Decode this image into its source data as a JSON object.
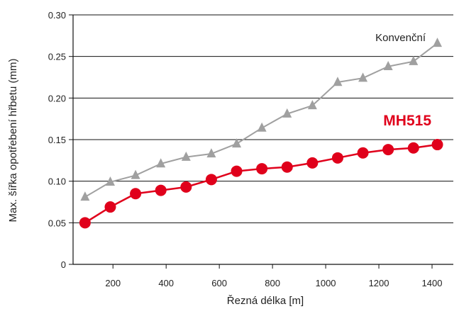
{
  "chart_data": {
    "type": "line",
    "xlabel": "Řezná délka [m]",
    "ylabel": "Max. šířka opotřebení hřbetu (mm)",
    "xlim": [
      50,
      1480
    ],
    "ylim": [
      0,
      0.3
    ],
    "x_ticks": [
      200,
      400,
      600,
      800,
      1000,
      1200,
      1400
    ],
    "x_tick_labels": [
      "200",
      "400",
      "600",
      "800",
      "1000",
      "1200",
      "1400"
    ],
    "y_ticks": [
      0,
      0.05,
      0.1,
      0.15,
      0.2,
      0.25,
      0.3
    ],
    "y_tick_labels": [
      "0",
      "0.05",
      "0.10",
      "0.15",
      "0.20",
      "0.25",
      "0.30"
    ],
    "grid": "horizontal",
    "series": [
      {
        "name": "Konvenční",
        "color": "#a0a0a0",
        "marker": "triangle",
        "x": [
          95,
          190,
          285,
          380,
          475,
          570,
          665,
          760,
          855,
          950,
          1045,
          1140,
          1235,
          1330,
          1420
        ],
        "y": [
          0.081,
          0.099,
          0.107,
          0.121,
          0.129,
          0.133,
          0.145,
          0.164,
          0.181,
          0.191,
          0.219,
          0.224,
          0.238,
          0.244,
          0.266
        ]
      },
      {
        "name": "MH515",
        "color": "#e0001b",
        "marker": "circle",
        "x": [
          95,
          190,
          285,
          380,
          475,
          570,
          665,
          760,
          855,
          950,
          1045,
          1140,
          1235,
          1330,
          1420
        ],
        "y": [
          0.05,
          0.069,
          0.085,
          0.089,
          0.093,
          0.102,
          0.112,
          0.115,
          0.117,
          0.122,
          0.128,
          0.134,
          0.138,
          0.14,
          0.144
        ]
      }
    ]
  }
}
